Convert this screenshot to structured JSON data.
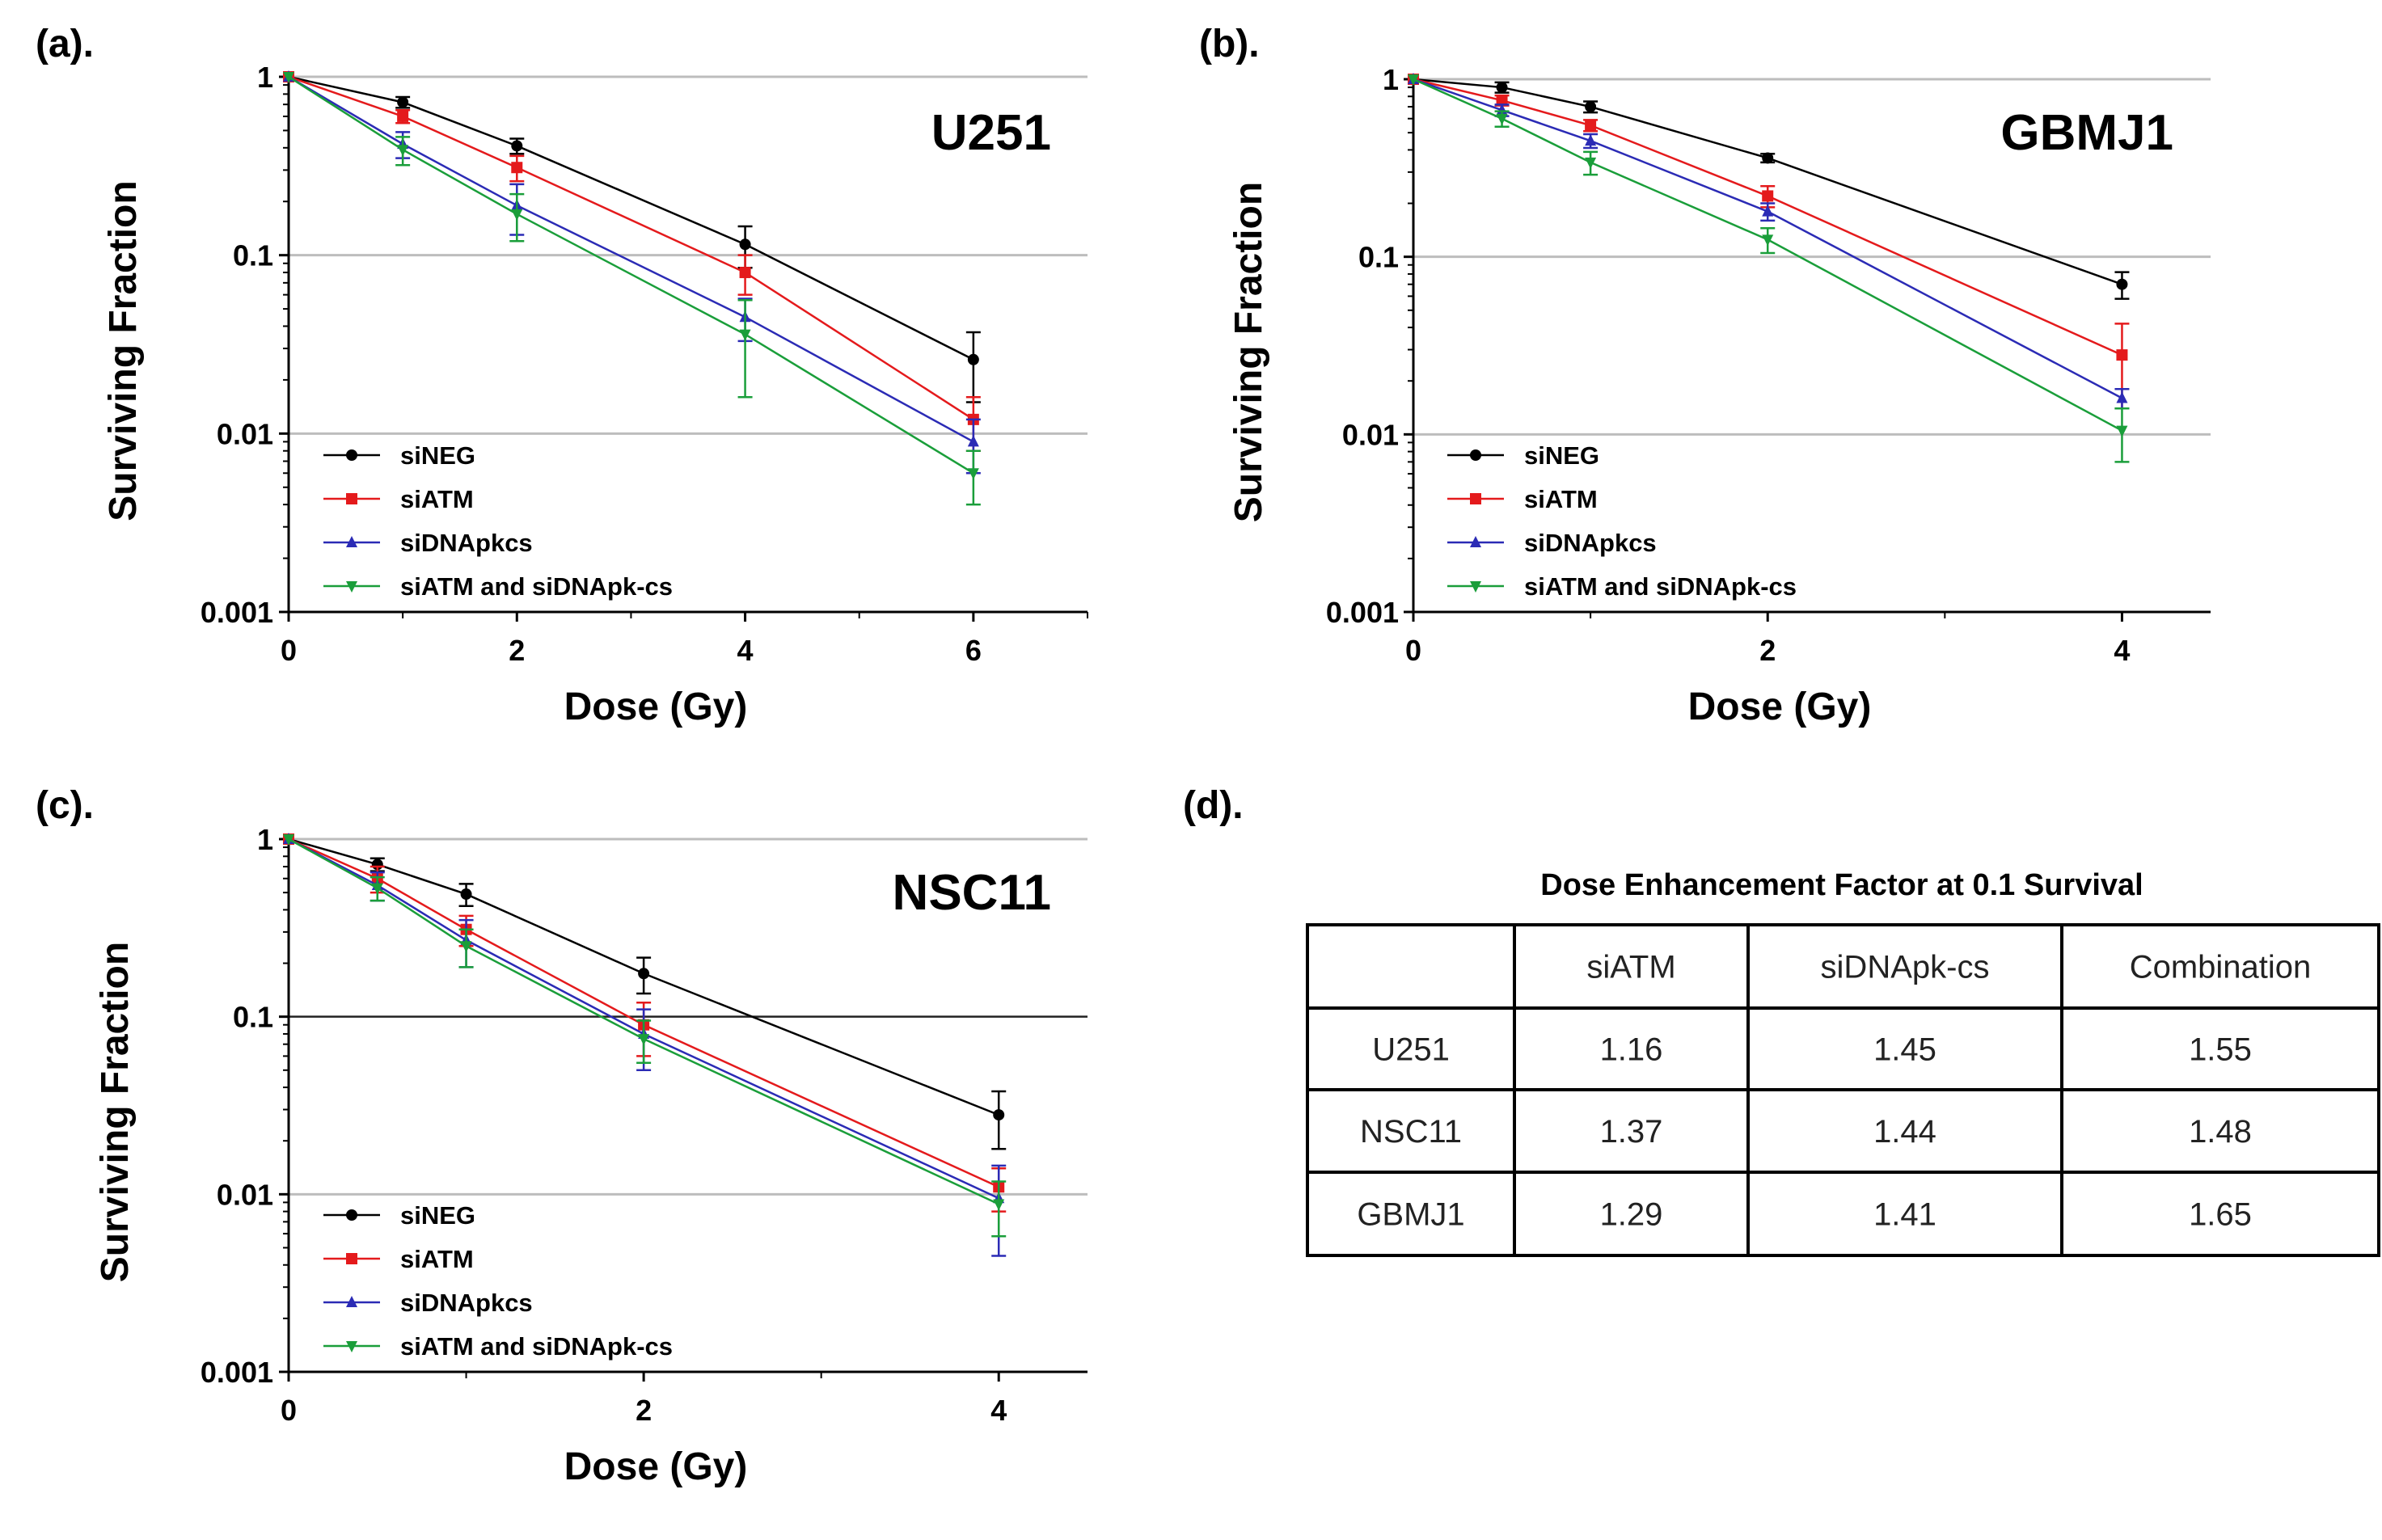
{
  "chart_data": [
    {
      "type": "line",
      "panel": "(a).",
      "title": "U251",
      "xlabel": "Dose (Gy)",
      "ylabel": "Surviving Fraction",
      "xlim": [
        0,
        7
      ],
      "ylim": [
        0.001,
        1
      ],
      "yscale": "log",
      "x_ticks": [
        0,
        2,
        4,
        6
      ],
      "y_ticks": [
        1,
        0.1,
        0.01,
        0.001
      ],
      "y_tick_labels": [
        "1",
        "0.1",
        "0.01",
        "0.001"
      ],
      "grid": "horizontal",
      "legend": "bottom-left",
      "series": [
        {
          "name": "siNEG",
          "color": "#000000",
          "x": [
            0,
            1,
            2,
            4,
            6
          ],
          "y": [
            1,
            0.72,
            0.41,
            0.115,
            0.026
          ],
          "err": [
            0,
            0.05,
            0.04,
            0.03,
            0.011
          ]
        },
        {
          "name": "siATM",
          "color": "#e41a1c",
          "x": [
            0,
            1,
            2,
            4,
            6
          ],
          "y": [
            1,
            0.6,
            0.31,
            0.08,
            0.012
          ],
          "err": [
            0,
            0.05,
            0.05,
            0.02,
            0.004
          ]
        },
        {
          "name": "siDNApkcs",
          "color": "#2b2bb5",
          "x": [
            0,
            1,
            2,
            4,
            6
          ],
          "y": [
            1,
            0.42,
            0.19,
            0.045,
            0.009
          ],
          "err": [
            0,
            0.07,
            0.06,
            0.012,
            0.003
          ]
        },
        {
          "name": "siATM and siDNApk-cs",
          "color": "#1a9e3a",
          "x": [
            0,
            1,
            2,
            4,
            6
          ],
          "y": [
            1,
            0.39,
            0.17,
            0.036,
            0.006
          ],
          "err": [
            0,
            0.07,
            0.05,
            0.02,
            0.002
          ]
        }
      ]
    },
    {
      "type": "line",
      "panel": "(b).",
      "title": "GBMJ1",
      "xlabel": "Dose (Gy)",
      "ylabel": "Surviving Fraction",
      "xlim": [
        0,
        4.5
      ],
      "ylim": [
        0.001,
        1
      ],
      "yscale": "log",
      "x_ticks": [
        0,
        2,
        4
      ],
      "y_ticks": [
        1,
        0.1,
        0.01,
        0.001
      ],
      "y_tick_labels": [
        "1",
        "0.1",
        "0.01",
        "0.001"
      ],
      "grid": "horizontal",
      "legend": "bottom-left",
      "series": [
        {
          "name": "siNEG",
          "color": "#000000",
          "x": [
            0,
            0.5,
            1,
            2,
            4
          ],
          "y": [
            1,
            0.9,
            0.7,
            0.36,
            0.07
          ],
          "err": [
            0,
            0.06,
            0.05,
            0.02,
            0.012
          ]
        },
        {
          "name": "siATM",
          "color": "#e41a1c",
          "x": [
            0,
            0.5,
            1,
            2,
            4
          ],
          "y": [
            1,
            0.76,
            0.55,
            0.22,
            0.028
          ],
          "err": [
            0,
            0.05,
            0.04,
            0.03,
            0.014
          ]
        },
        {
          "name": "siDNApkcs",
          "color": "#2b2bb5",
          "x": [
            0,
            0.5,
            1,
            2,
            4
          ],
          "y": [
            1,
            0.67,
            0.45,
            0.18,
            0.016
          ],
          "err": [
            0,
            0.05,
            0.04,
            0.02,
            0.002
          ]
        },
        {
          "name": "siATM and siDNApk-cs",
          "color": "#1a9e3a",
          "x": [
            0,
            0.5,
            1,
            2,
            4
          ],
          "y": [
            1,
            0.6,
            0.34,
            0.125,
            0.0105
          ],
          "err": [
            0,
            0.06,
            0.05,
            0.02,
            0.0035
          ]
        }
      ]
    },
    {
      "type": "line",
      "panel": "(c).",
      "title": "NSC11",
      "xlabel": "Dose (Gy)",
      "ylabel": "Surviving Fraction",
      "xlim": [
        0,
        4.5
      ],
      "ylim": [
        0.001,
        1
      ],
      "yscale": "log",
      "x_ticks": [
        0,
        2,
        4
      ],
      "y_ticks": [
        1,
        0.1,
        0.01,
        0.001
      ],
      "y_tick_labels": [
        "1",
        "0.1",
        "0.01",
        "0.001"
      ],
      "grid": "horizontal",
      "legend": "bottom-left",
      "series": [
        {
          "name": "siNEG",
          "color": "#000000",
          "x": [
            0,
            0.5,
            1,
            2,
            4
          ],
          "y": [
            1,
            0.72,
            0.49,
            0.175,
            0.028
          ],
          "err": [
            0,
            0.06,
            0.07,
            0.04,
            0.01
          ]
        },
        {
          "name": "siATM",
          "color": "#e41a1c",
          "x": [
            0,
            0.5,
            1,
            2,
            4
          ],
          "y": [
            1,
            0.6,
            0.31,
            0.09,
            0.011
          ],
          "err": [
            0,
            0.1,
            0.06,
            0.03,
            0.003
          ]
        },
        {
          "name": "siDNApkcs",
          "color": "#2b2bb5",
          "x": [
            0,
            0.5,
            1,
            2,
            4
          ],
          "y": [
            1,
            0.55,
            0.27,
            0.08,
            0.0095
          ],
          "err": [
            0,
            0.1,
            0.08,
            0.03,
            0.005
          ]
        },
        {
          "name": "siATM and siDNApk-cs",
          "color": "#1a9e3a",
          "x": [
            0,
            0.5,
            1,
            2,
            4
          ],
          "y": [
            1,
            0.53,
            0.25,
            0.075,
            0.0088
          ],
          "err": [
            0,
            0.08,
            0.06,
            0.02,
            0.003
          ]
        }
      ]
    },
    {
      "type": "table",
      "panel": "(d).",
      "title": "Dose Enhancement Factor at 0.1 Survival",
      "columns": [
        "",
        "siATM",
        "siDNApk-cs",
        "Combination"
      ],
      "rows": [
        [
          "U251",
          "1.16",
          "1.45",
          "1.55"
        ],
        [
          "NSC11",
          "1.37",
          "1.44",
          "1.48"
        ],
        [
          "GBMJ1",
          "1.29",
          "1.41",
          "1.65"
        ]
      ]
    }
  ]
}
